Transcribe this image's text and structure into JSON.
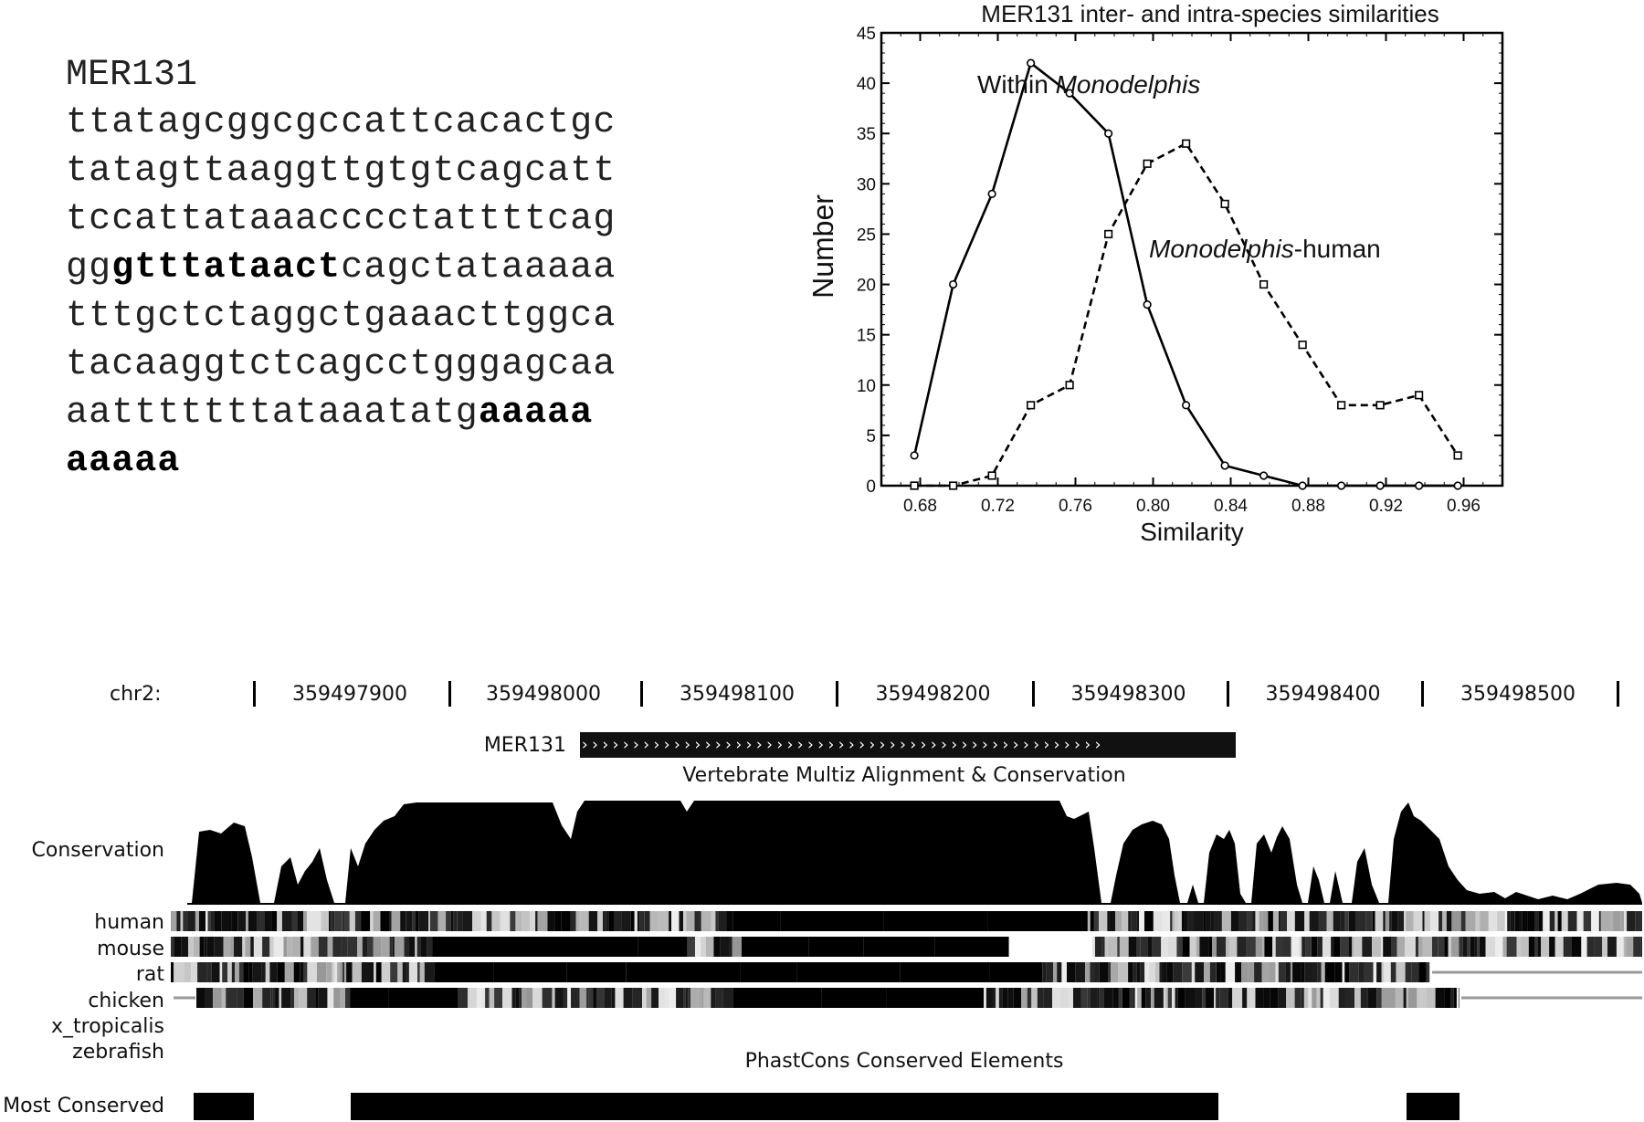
{
  "sequence_panel": {
    "title": "MER131",
    "lines": [
      [
        {
          "t": "ttatagcggcgccattcacactgc",
          "b": false
        }
      ],
      [
        {
          "t": "tatagttaaggttgtgtcagcatt",
          "b": false
        }
      ],
      [
        {
          "t": "tccattataaacccctattttcag",
          "b": false
        }
      ],
      [
        {
          "t": "gg",
          "b": false
        },
        {
          "t": "gtttataact",
          "b": true
        },
        {
          "t": "cagctataaaaa",
          "b": false
        }
      ],
      [
        {
          "t": "tttgctctaggctgaaacttggca",
          "b": false
        }
      ],
      [
        {
          "t": "tacaaggtctcagcctgggagcaa",
          "b": false
        }
      ],
      [
        {
          "t": "aatttttttataaatatg",
          "b": false
        },
        {
          "t": "aaaaa",
          "b": true
        }
      ],
      [
        {
          "t": "aaaaa",
          "b": true
        }
      ]
    ]
  },
  "chart_data": {
    "type": "line",
    "title": "MER131 inter- and intra-species similarities",
    "xlabel": "Similarity",
    "ylabel": "Number",
    "xlim": [
      0.66,
      0.98
    ],
    "ylim": [
      0,
      45
    ],
    "xticks": [
      0.68,
      0.72,
      0.76,
      0.8,
      0.84,
      0.88,
      0.92,
      0.96
    ],
    "yticks": [
      0,
      5,
      10,
      15,
      20,
      25,
      30,
      35,
      40,
      45
    ],
    "grid": false,
    "series": [
      {
        "name_parts": [
          {
            "t": "Within ",
            "i": false
          },
          {
            "t": "Monodelphis",
            "i": true
          }
        ],
        "style": "solid",
        "marker": "circle",
        "x": [
          0.677,
          0.697,
          0.717,
          0.737,
          0.757,
          0.777,
          0.797,
          0.817,
          0.837,
          0.857,
          0.877,
          0.897,
          0.917,
          0.937,
          0.957
        ],
        "y": [
          3,
          20,
          29,
          42,
          39,
          35,
          18,
          8,
          2,
          1,
          0,
          0,
          0,
          0,
          0
        ]
      },
      {
        "name_parts": [
          {
            "t": "Monodelphis",
            "i": true
          },
          {
            "t": "-human",
            "i": false
          }
        ],
        "style": "dashed",
        "marker": "square",
        "x": [
          0.677,
          0.697,
          0.717,
          0.737,
          0.757,
          0.777,
          0.797,
          0.817,
          0.837,
          0.857,
          0.877,
          0.897,
          0.917,
          0.937,
          0.957
        ],
        "y": [
          0,
          0,
          1,
          8,
          10,
          25,
          32,
          34,
          28,
          20,
          14,
          8,
          8,
          9,
          3
        ]
      }
    ]
  },
  "browser": {
    "chrom_label": "chr2:",
    "positions": [
      "359497900",
      "359498000",
      "359498100",
      "359498200",
      "359498300",
      "359498400",
      "359498500"
    ],
    "repeat_label": "MER131",
    "repeat_arrows": "›››››››››››››››››››››››››››››››››››››››››››››››››››",
    "multiz_title": "Vertebrate Multiz Alignment & Conservation",
    "conservation_label": "Conservation",
    "species": [
      "human",
      "mouse",
      "rat",
      "chicken",
      "x_tropicalis",
      "zebrafish"
    ],
    "phastcons_title": "PhastCons Conserved Elements",
    "most_conserved_label": "Most Conserved"
  }
}
